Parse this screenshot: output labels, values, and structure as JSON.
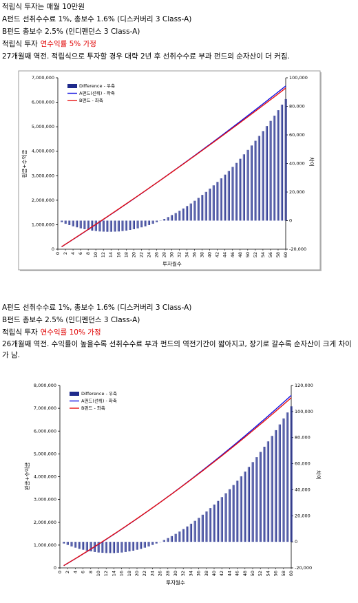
{
  "intro": "적립식 투자는 매월 10만원",
  "sections": [
    {
      "fund_a": "A펀드 선취수수료 1%, 총보수 1.6% (디스커버리 3 Class-A)",
      "fund_b": "B펀드 총보수 2.5% (인디펜던스 3 Class-A)",
      "assumption": {
        "text": "적립식 투자",
        "highlight": "연수익률 5% 가정"
      },
      "note": "27개월째 역전. 적립식으로 투자할 경우 대략 2년 후 선취수수료 부과 펀드의 순자산이 더 커짐."
    },
    {
      "fund_a": "A펀드 선취수수료 1%, 총보수 1.6% (디스커버리 3 Class-A)",
      "fund_b": "B펀드 총보수 2.5% (인디펜던스 3 Class-A)",
      "assumption": {
        "text": "적립식 투자",
        "highlight": "연수익률 10% 가정"
      },
      "note": "26개월째 역전. 수익률이 높을수록 선취수수료 부과 펀드의 역전기간이 짧아지고, 장기로 갈수록 순자산이 크게 차이가 남."
    }
  ],
  "chart_data": [
    {
      "type": "combo",
      "xlabel": "투자월수",
      "ylabel": "원금+수익금",
      "y2label": "차이",
      "legend": "upper left",
      "x": [
        1,
        2,
        3,
        4,
        5,
        6,
        7,
        8,
        9,
        10,
        11,
        12,
        13,
        14,
        15,
        16,
        17,
        18,
        19,
        20,
        21,
        22,
        23,
        24,
        25,
        26,
        27,
        28,
        29,
        30,
        31,
        32,
        33,
        34,
        35,
        36,
        37,
        38,
        39,
        40,
        41,
        42,
        43,
        44,
        45,
        46,
        47,
        48,
        49,
        50,
        51,
        52,
        53,
        54,
        55,
        56,
        57,
        58,
        59,
        60
      ],
      "xlim": [
        0,
        60
      ],
      "xticks": [
        0,
        2,
        4,
        6,
        8,
        10,
        12,
        14,
        16,
        18,
        20,
        22,
        24,
        26,
        28,
        30,
        32,
        34,
        36,
        38,
        40,
        42,
        44,
        46,
        48,
        50,
        52,
        54,
        56,
        58,
        60
      ],
      "ylim": [
        0,
        7000000
      ],
      "yticks": [
        0,
        {
          "value": 1000000,
          "label": "1,000,000"
        },
        {
          "value": 2000000,
          "label": "2,000,000"
        },
        {
          "value": 3000000,
          "label": "3,000,000"
        },
        {
          "value": 4000000,
          "label": "4,000,000"
        },
        {
          "value": 5000000,
          "label": "5,000,000"
        },
        {
          "value": 6000000,
          "label": "6,000,000"
        },
        {
          "value": 7000000,
          "label": "7,000,000"
        }
      ],
      "y2lim": [
        -20000,
        100000
      ],
      "y2ticks": [
        {
          "value": -20000,
          "label": "-20,000"
        },
        0,
        {
          "value": 20000,
          "label": "20,000"
        },
        {
          "value": 40000,
          "label": "40,000"
        },
        {
          "value": 60000,
          "label": "60,000"
        },
        {
          "value": 80000,
          "label": "80,000"
        },
        {
          "value": 100000,
          "label": "100,000"
        }
      ],
      "series": [
        {
          "name": "Difference - 우축",
          "type": "bar",
          "axis": "y2",
          "color": "#1f2b8c",
          "values": [
            -1100,
            -2200,
            -3100,
            -4000,
            -4700,
            -5400,
            -6000,
            -6500,
            -7000,
            -7300,
            -7600,
            -7700,
            -7800,
            -7800,
            -7700,
            -7600,
            -7300,
            -7000,
            -6500,
            -6000,
            -5400,
            -4700,
            -4000,
            -3100,
            -2200,
            -1100,
            0,
            1200,
            2500,
            3900,
            5300,
            6900,
            8500,
            10200,
            12000,
            13900,
            15900,
            18000,
            20100,
            22400,
            24700,
            27100,
            29600,
            32200,
            34800,
            37600,
            40400,
            43300,
            46400,
            49500,
            52600,
            55900,
            59300,
            62700,
            66200,
            69800,
            73500,
            77300,
            81200,
            85100
          ]
        },
        {
          "name": "A펀드(선취) - 좌축",
          "type": "line",
          "axis": "y",
          "color": "#1010e0",
          "values": [
            99000,
            199000,
            298000,
            399000,
            499000,
            601000,
            702000,
            804000,
            906000,
            1009000,
            1111000,
            1215000,
            1319000,
            1424000,
            1528000,
            1633000,
            1740000,
            1845000,
            1952000,
            2058000,
            2166000,
            2273000,
            2381000,
            2490000,
            2599000,
            2708000,
            2817000,
            2927000,
            3038000,
            3149000,
            3260000,
            3372000,
            3484000,
            3596000,
            3709000,
            3823000,
            3936000,
            4050000,
            4165000,
            4280000,
            4396000,
            4511000,
            4628000,
            4744000,
            4861000,
            4979000,
            5096000,
            5214000,
            5333000,
            5453000,
            5572000,
            5691000,
            5811000,
            5932000,
            6053000,
            6175000,
            6297000,
            6419000,
            6541000,
            6665000
          ]
        },
        {
          "name": "B펀드 - 좌축",
          "type": "line",
          "axis": "y",
          "color": "#e81010",
          "values": [
            100000,
            201000,
            301000,
            403000,
            504000,
            606000,
            708000,
            810000,
            913000,
            1016000,
            1119000,
            1223000,
            1327000,
            1432000,
            1536000,
            1641000,
            1747000,
            1852000,
            1958000,
            2064000,
            2171000,
            2278000,
            2385000,
            2493000,
            2601000,
            2709000,
            2817000,
            2926000,
            3035000,
            3145000,
            3255000,
            3365000,
            3475000,
            3586000,
            3697000,
            3809000,
            3920000,
            4032000,
            4145000,
            4258000,
            4371000,
            4484000,
            4598000,
            4712000,
            4826000,
            4941000,
            5056000,
            5171000,
            5287000,
            5403000,
            5519000,
            5635000,
            5752000,
            5869000,
            5987000,
            6105000,
            6223000,
            6342000,
            6460000,
            6580000
          ]
        }
      ]
    },
    {
      "type": "combo",
      "xlabel": "투자월수",
      "ylabel": "원금+수익금",
      "y2label": "차이",
      "legend": "upper left",
      "x": [
        1,
        2,
        3,
        4,
        5,
        6,
        7,
        8,
        9,
        10,
        11,
        12,
        13,
        14,
        15,
        16,
        17,
        18,
        19,
        20,
        21,
        22,
        23,
        24,
        25,
        26,
        27,
        28,
        29,
        30,
        31,
        32,
        33,
        34,
        35,
        36,
        37,
        38,
        39,
        40,
        41,
        42,
        43,
        44,
        45,
        46,
        47,
        48,
        49,
        50,
        51,
        52,
        53,
        54,
        55,
        56,
        57,
        58,
        59,
        60
      ],
      "xlim": [
        0,
        60
      ],
      "xticks": [
        0,
        2,
        4,
        6,
        8,
        10,
        12,
        14,
        16,
        18,
        20,
        22,
        24,
        26,
        28,
        30,
        32,
        34,
        36,
        38,
        40,
        42,
        44,
        46,
        48,
        50,
        52,
        54,
        56,
        58,
        60
      ],
      "ylim": [
        0,
        8000000
      ],
      "yticks": [
        0,
        {
          "value": 1000000,
          "label": "1,000,000"
        },
        {
          "value": 2000000,
          "label": "2,000,000"
        },
        {
          "value": 3000000,
          "label": "3,000,000"
        },
        {
          "value": 4000000,
          "label": "4,000,000"
        },
        {
          "value": 5000000,
          "label": "5,000,000"
        },
        {
          "value": 6000000,
          "label": "6,000,000"
        },
        {
          "value": 7000000,
          "label": "7,000,000"
        },
        {
          "value": 8000000,
          "label": "8,000,000"
        }
      ],
      "y2lim": [
        -20000,
        120000
      ],
      "y2ticks": [
        {
          "value": -20000,
          "label": "-20,000"
        },
        0,
        {
          "value": 20000,
          "label": "20,000"
        },
        {
          "value": 40000,
          "label": "40,000"
        },
        {
          "value": 60000,
          "label": "60,000"
        },
        {
          "value": 80000,
          "label": "80,000"
        },
        {
          "value": 100000,
          "label": "100,000"
        },
        {
          "value": 120000,
          "label": "120,000"
        }
      ],
      "series": [
        {
          "name": "Difference - 우축",
          "type": "bar",
          "axis": "y2",
          "color": "#1f2b8c",
          "values": [
            -1300,
            -2400,
            -3500,
            -4500,
            -5400,
            -6100,
            -6800,
            -7300,
            -7800,
            -8200,
            -8400,
            -8600,
            -8600,
            -8600,
            -8400,
            -8200,
            -7800,
            -7300,
            -6800,
            -6100,
            -5400,
            -4500,
            -3500,
            -2400,
            -1300,
            0,
            1400,
            2900,
            4400,
            6100,
            7900,
            9800,
            11800,
            13900,
            16100,
            18400,
            20800,
            23300,
            25900,
            28600,
            31400,
            34300,
            37300,
            40400,
            43600,
            46900,
            50300,
            53900,
            57500,
            61200,
            65000,
            69000,
            73000,
            77100,
            81300,
            85700,
            90100,
            94700,
            99300,
            104000
          ]
        },
        {
          "name": "A펀드(선취) - 좌축",
          "type": "line",
          "axis": "y",
          "color": "#1010e0",
          "values": [
            99000,
            200000,
            301000,
            402000,
            505000,
            609000,
            713000,
            819000,
            925000,
            1033000,
            1141000,
            1249000,
            1360000,
            1471000,
            1583000,
            1696000,
            1809000,
            1925000,
            2040000,
            2156000,
            2274000,
            2393000,
            2512000,
            2632000,
            2753000,
            2874000,
            2997000,
            3121000,
            3245000,
            3371000,
            3498000,
            3626000,
            3754000,
            3883000,
            4013000,
            4144000,
            4277000,
            4409000,
            4544000,
            4679000,
            4813000,
            4950000,
            5088000,
            5226000,
            5366000,
            5506000,
            5647000,
            5789000,
            5933000,
            6076000,
            6221000,
            6367000,
            6513000,
            6661000,
            6809000,
            6959000,
            7109000,
            7261000,
            7412000,
            7566000
          ]
        },
        {
          "name": "B펀드 - 좌축",
          "type": "line",
          "axis": "y",
          "color": "#e81010",
          "values": [
            100000,
            202000,
            304000,
            406000,
            510000,
            615000,
            720000,
            826000,
            933000,
            1041000,
            1149000,
            1258000,
            1369000,
            1480000,
            1591000,
            1704000,
            1817000,
            1932000,
            2047000,
            2162000,
            2279000,
            2397000,
            2515000,
            2634000,
            2754000,
            2874000,
            2996000,
            3118000,
            3241000,
            3365000,
            3490000,
            3616000,
            3742000,
            3869000,
            3997000,
            4126000,
            4256000,
            4386000,
            4518000,
            4650000,
            4782000,
            4916000,
            5051000,
            5186000,
            5322000,
            5459000,
            5597000,
            5735000,
            5875000,
            6015000,
            6156000,
            6298000,
            6440000,
            6584000,
            6728000,
            6873000,
            7019000,
            7166000,
            7313000,
            7462000
          ]
        }
      ]
    }
  ]
}
